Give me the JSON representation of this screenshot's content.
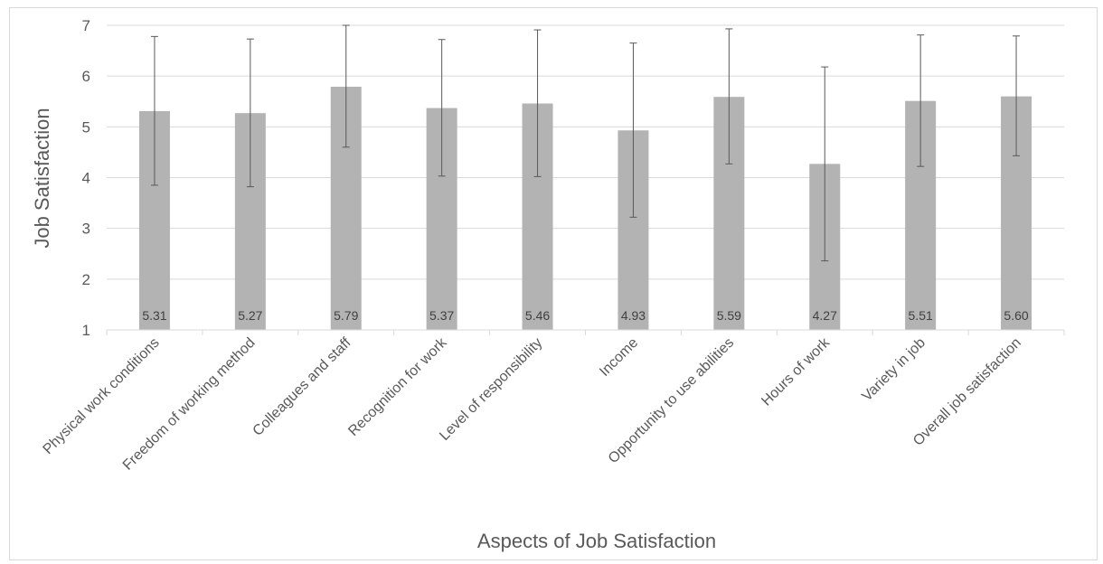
{
  "chart_data": {
    "type": "bar",
    "xlabel": "Aspects of Job Satisfaction",
    "ylabel": "Job Satisfaction",
    "ylim": [
      1,
      7
    ],
    "yticks": [
      1,
      2,
      3,
      4,
      5,
      6,
      7
    ],
    "grid": true,
    "bar_color": "#b3b3b3",
    "categories": [
      "Physical work conditions",
      "Freedom of working method",
      "Colleagues and staff",
      "Recognition for work",
      "Level of responsibility",
      "Income",
      "Opportunity to use abilities",
      "Hours of work",
      "Variety in job",
      "Overall job satisfaction"
    ],
    "values": [
      5.31,
      5.27,
      5.79,
      5.37,
      5.46,
      4.93,
      5.59,
      4.27,
      5.51,
      5.6
    ],
    "value_labels": [
      "5.31",
      "5.27",
      "5.79",
      "5.37",
      "5.46",
      "4.93",
      "5.59",
      "4.27",
      "5.51",
      "5.60"
    ],
    "error_low": [
      3.85,
      3.82,
      4.6,
      4.03,
      4.02,
      3.22,
      4.27,
      2.36,
      4.22,
      4.43
    ],
    "error_high": [
      6.78,
      6.73,
      7.0,
      6.72,
      6.91,
      6.65,
      6.93,
      6.18,
      6.81,
      6.79
    ]
  }
}
